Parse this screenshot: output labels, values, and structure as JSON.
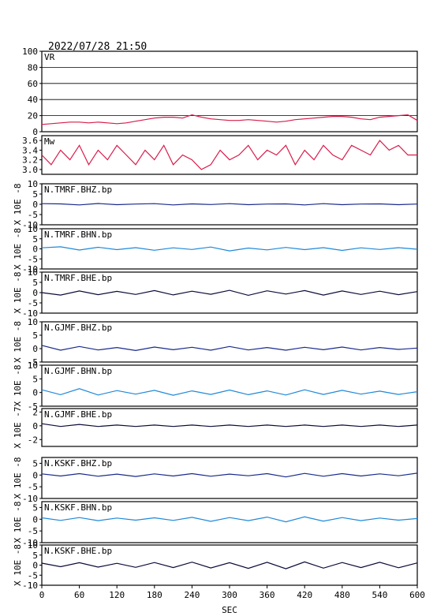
{
  "header": {
    "datetime": "2022/07/28 21:50"
  },
  "chart_data": [
    {
      "type": "line",
      "label": "VR",
      "ylim": [
        0,
        100
      ],
      "yticks": [
        0,
        20,
        40,
        60,
        80,
        100
      ],
      "grid": true,
      "color": "#d81b4a",
      "series": [
        {
          "x": [
            0,
            15,
            30,
            45,
            60,
            75,
            90,
            105,
            120,
            135,
            150,
            165,
            180,
            195,
            210,
            225,
            240,
            255,
            270,
            285,
            300,
            315,
            330,
            345,
            360,
            375,
            390,
            405,
            420,
            435,
            450,
            465,
            480,
            495,
            510,
            525,
            540,
            555,
            570,
            585,
            600
          ],
          "values": [
            9,
            10,
            11,
            12,
            12,
            11,
            12,
            11,
            10,
            11,
            13,
            15,
            17,
            18,
            18,
            17,
            21,
            18,
            16,
            15,
            14,
            14,
            15,
            14,
            13,
            12,
            13,
            15,
            16,
            17,
            18,
            19,
            19,
            18,
            16,
            15,
            18,
            19,
            20,
            21,
            14
          ]
        }
      ]
    },
    {
      "type": "line",
      "label": "Mw",
      "ylim": [
        2.9,
        3.7
      ],
      "yticks": [
        3.0,
        3.2,
        3.4,
        3.6
      ],
      "ytick_labels": [
        "3.0",
        "3.2",
        "3.4",
        "3.6"
      ],
      "grid": false,
      "color": "#d81b4a",
      "series": [
        {
          "x": [
            0,
            15,
            30,
            45,
            60,
            75,
            90,
            105,
            120,
            135,
            150,
            165,
            180,
            195,
            210,
            225,
            240,
            255,
            270,
            285,
            300,
            315,
            330,
            345,
            360,
            375,
            390,
            405,
            420,
            435,
            450,
            465,
            480,
            495,
            510,
            525,
            540,
            555,
            570,
            585,
            600
          ],
          "values": [
            3.3,
            3.1,
            3.4,
            3.2,
            3.5,
            3.1,
            3.4,
            3.2,
            3.5,
            3.3,
            3.1,
            3.4,
            3.2,
            3.5,
            3.1,
            3.3,
            3.2,
            3.0,
            3.1,
            3.4,
            3.2,
            3.3,
            3.5,
            3.2,
            3.4,
            3.3,
            3.5,
            3.1,
            3.4,
            3.2,
            3.5,
            3.3,
            3.2,
            3.5,
            3.4,
            3.3,
            3.6,
            3.4,
            3.5,
            3.3,
            3.3
          ]
        }
      ]
    },
    {
      "type": "line",
      "label": "N.TMRF.BHZ.bp",
      "ylabel": "X 10E -8",
      "ylim": [
        -10,
        10
      ],
      "yticks": [
        -10,
        -5,
        0,
        5,
        10
      ],
      "color": "#1a2a8c",
      "series": [
        {
          "x": [
            0,
            30,
            60,
            90,
            120,
            150,
            180,
            210,
            240,
            270,
            300,
            330,
            360,
            390,
            420,
            450,
            480,
            510,
            540,
            570,
            600
          ],
          "values": [
            0.3,
            0.2,
            -0.3,
            0.4,
            -0.2,
            0.1,
            0.3,
            -0.3,
            0.2,
            -0.1,
            0.3,
            -0.2,
            0.1,
            0.2,
            -0.3,
            0.3,
            -0.2,
            0.1,
            0.2,
            -0.2,
            0.1
          ]
        }
      ]
    },
    {
      "type": "line",
      "label": "N.TMRF.BHN.bp",
      "ylabel": "X 10E -8",
      "ylim": [
        -10,
        10
      ],
      "yticks": [
        -10,
        -5,
        0,
        5,
        10
      ],
      "color": "#1e88d8",
      "series": [
        {
          "x": [
            0,
            30,
            60,
            90,
            120,
            150,
            180,
            210,
            240,
            270,
            300,
            330,
            360,
            390,
            420,
            450,
            480,
            510,
            540,
            570,
            600
          ],
          "values": [
            0.5,
            1.0,
            -0.6,
            0.8,
            -0.4,
            0.6,
            -0.7,
            0.5,
            -0.3,
            0.9,
            -1.0,
            0.4,
            -0.5,
            0.7,
            -0.4,
            0.6,
            -0.8,
            0.5,
            -0.3,
            0.6,
            -0.2
          ]
        }
      ]
    },
    {
      "type": "line",
      "label": "N.TMRF.BHE.bp",
      "ylabel": "X 10E -8",
      "ylim": [
        -10,
        10
      ],
      "yticks": [
        -10,
        -5,
        0,
        5,
        10
      ],
      "color": "#0b0b3a",
      "series": [
        {
          "x": [
            0,
            30,
            60,
            90,
            120,
            150,
            180,
            210,
            240,
            270,
            300,
            330,
            360,
            390,
            420,
            450,
            480,
            510,
            540,
            570,
            600
          ],
          "values": [
            0,
            -1.2,
            0.8,
            -1.0,
            0.6,
            -0.9,
            1.0,
            -1.1,
            0.7,
            -0.8,
            1.1,
            -1.3,
            0.9,
            -0.7,
            1.0,
            -1.2,
            0.8,
            -0.9,
            0.7,
            -1.0,
            0.5
          ]
        }
      ]
    },
    {
      "type": "line",
      "label": "N.GJMF.BHZ.bp",
      "ylabel": "X 10E -8",
      "ylim": [
        -5,
        10
      ],
      "yticks": [
        -5,
        0,
        5,
        10
      ],
      "color": "#1a2a8c",
      "series": [
        {
          "x": [
            0,
            30,
            60,
            90,
            120,
            150,
            180,
            210,
            240,
            270,
            300,
            330,
            360,
            390,
            420,
            450,
            480,
            510,
            540,
            570,
            600
          ],
          "values": [
            1.2,
            -0.6,
            0.8,
            -0.5,
            0.4,
            -0.7,
            0.6,
            -0.4,
            0.5,
            -0.6,
            0.8,
            -0.5,
            0.4,
            -0.6,
            0.5,
            -0.4,
            0.6,
            -0.5,
            0.4,
            -0.3,
            0.2
          ]
        }
      ]
    },
    {
      "type": "line",
      "label": "N.GJMF.BHN.bp",
      "ylabel": "X 10E -8",
      "ylim": [
        -5,
        10
      ],
      "yticks": [
        -5,
        0,
        5,
        10
      ],
      "color": "#1e88d8",
      "series": [
        {
          "x": [
            0,
            30,
            60,
            90,
            120,
            150,
            180,
            210,
            240,
            270,
            300,
            330,
            360,
            390,
            420,
            450,
            480,
            510,
            540,
            570,
            600
          ],
          "values": [
            1.0,
            -0.8,
            1.4,
            -0.9,
            0.7,
            -0.6,
            0.8,
            -1.0,
            0.6,
            -0.7,
            0.9,
            -0.8,
            0.6,
            -0.9,
            1.0,
            -0.7,
            0.8,
            -0.6,
            0.5,
            -0.7,
            0.3
          ]
        }
      ]
    },
    {
      "type": "line",
      "label": "N.GJMF.BHE.bp",
      "ylabel": "X 10E -7",
      "ylim": [
        -3,
        2.5
      ],
      "yticks": [
        -2,
        0,
        2
      ],
      "color": "#0b0b3a",
      "series": [
        {
          "x": [
            0,
            30,
            60,
            90,
            120,
            150,
            180,
            210,
            240,
            270,
            300,
            330,
            360,
            390,
            420,
            450,
            480,
            510,
            540,
            570,
            600
          ],
          "values": [
            0.3,
            -0.1,
            0.2,
            -0.1,
            0.1,
            -0.1,
            0.1,
            -0.1,
            0.1,
            -0.1,
            0.1,
            -0.1,
            0.1,
            -0.1,
            0.1,
            -0.1,
            0.1,
            -0.1,
            0.1,
            -0.1,
            0.1
          ]
        }
      ]
    },
    {
      "type": "line",
      "label": "N.KSKF.BHZ.bp",
      "ylabel": "X 10E -8",
      "ylim": [
        -10,
        7.5
      ],
      "yticks": [
        -10,
        -5,
        0,
        5
      ],
      "color": "#1a2a8c",
      "series": [
        {
          "x": [
            0,
            30,
            60,
            90,
            120,
            150,
            180,
            210,
            240,
            270,
            300,
            330,
            360,
            390,
            420,
            450,
            480,
            510,
            540,
            570,
            600
          ],
          "values": [
            0.5,
            -0.4,
            0.6,
            -0.5,
            0.4,
            -0.6,
            0.5,
            -0.4,
            0.6,
            -0.5,
            0.4,
            -0.3,
            0.6,
            -0.8,
            0.7,
            -0.5,
            0.6,
            -0.4,
            0.5,
            -0.3,
            0.8
          ]
        }
      ]
    },
    {
      "type": "line",
      "label": "N.KSKF.BHN.bp",
      "ylabel": "X 10E -8",
      "ylim": [
        -10,
        7.5
      ],
      "yticks": [
        -10,
        -5,
        0,
        5
      ],
      "color": "#1e88d8",
      "series": [
        {
          "x": [
            0,
            30,
            60,
            90,
            120,
            150,
            180,
            210,
            240,
            270,
            300,
            330,
            360,
            390,
            420,
            450,
            480,
            510,
            540,
            570,
            600
          ],
          "values": [
            0.6,
            -0.5,
            0.7,
            -0.6,
            0.5,
            -0.4,
            0.6,
            -0.5,
            0.8,
            -0.9,
            0.7,
            -0.6,
            0.9,
            -1.1,
            1.0,
            -0.8,
            0.7,
            -0.6,
            0.5,
            -0.4,
            0.3
          ]
        }
      ]
    },
    {
      "type": "line",
      "label": "N.KSKF.BHE.bp",
      "ylabel": "X 10E -8",
      "ylim": [
        -10,
        10
      ],
      "yticks": [
        -10,
        -5,
        0,
        5,
        10
      ],
      "color": "#0b0b3a",
      "series": [
        {
          "x": [
            0,
            30,
            60,
            90,
            120,
            150,
            180,
            210,
            240,
            270,
            300,
            330,
            360,
            390,
            420,
            450,
            480,
            510,
            540,
            570,
            600
          ],
          "values": [
            1.0,
            -0.8,
            1.2,
            -1.0,
            0.9,
            -1.1,
            1.3,
            -1.2,
            1.5,
            -1.4,
            1.2,
            -1.6,
            1.4,
            -1.8,
            1.6,
            -1.5,
            1.3,
            -1.2,
            1.4,
            -1.3,
            1.1
          ]
        }
      ]
    }
  ],
  "x_axis": {
    "xlim": [
      0,
      600
    ],
    "ticks": [
      0,
      60,
      120,
      180,
      240,
      300,
      360,
      420,
      480,
      540,
      600
    ],
    "xlabel": "SEC"
  }
}
